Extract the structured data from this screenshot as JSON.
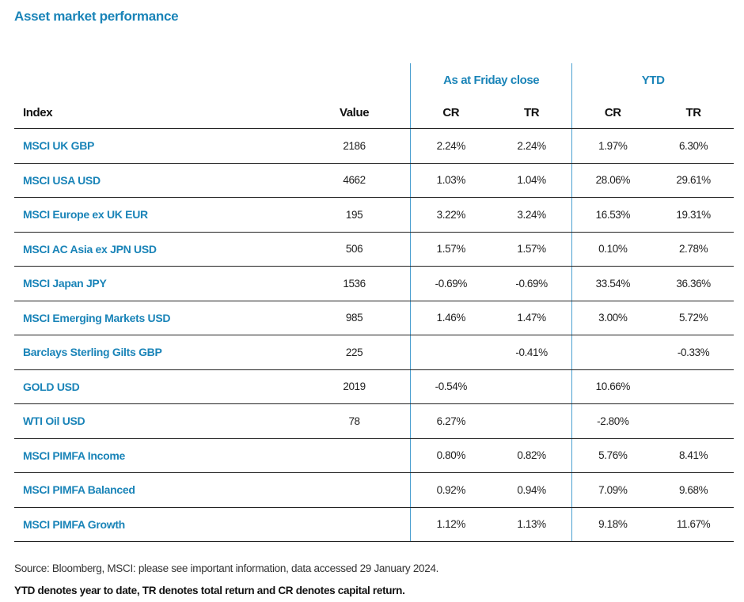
{
  "title": "Asset market performance",
  "groups": {
    "friday": "As at Friday close",
    "ytd": "YTD"
  },
  "headers": {
    "index": "Index",
    "value": "Value",
    "friday_cr": "CR",
    "friday_tr": "TR",
    "ytd_cr": "CR",
    "ytd_tr": "TR"
  },
  "rows": [
    {
      "index": "MSCI UK GBP",
      "value": "2186",
      "fcr": "2.24%",
      "ftr": "2.24%",
      "ycr": "1.97%",
      "ytr": "6.30%"
    },
    {
      "index": "MSCI USA USD",
      "value": "4662",
      "fcr": "1.03%",
      "ftr": "1.04%",
      "ycr": "28.06%",
      "ytr": "29.61%"
    },
    {
      "index": "MSCI Europe ex UK EUR",
      "value": "195",
      "fcr": "3.22%",
      "ftr": "3.24%",
      "ycr": "16.53%",
      "ytr": "19.31%"
    },
    {
      "index": "MSCI AC Asia ex JPN USD",
      "value": "506",
      "fcr": "1.57%",
      "ftr": "1.57%",
      "ycr": "0.10%",
      "ytr": "2.78%"
    },
    {
      "index": "MSCI Japan JPY",
      "value": "1536",
      "fcr": "-0.69%",
      "ftr": "-0.69%",
      "ycr": "33.54%",
      "ytr": "36.36%"
    },
    {
      "index": "MSCI Emerging Markets USD",
      "value": "985",
      "fcr": "1.46%",
      "ftr": "1.47%",
      "ycr": "3.00%",
      "ytr": "5.72%"
    },
    {
      "index": "Barclays Sterling Gilts GBP",
      "value": "225",
      "fcr": "",
      "ftr": "-0.41%",
      "ycr": "",
      "ytr": "-0.33%"
    },
    {
      "index": "GOLD USD",
      "value": "2019",
      "fcr": "-0.54%",
      "ftr": "",
      "ycr": "10.66%",
      "ytr": ""
    },
    {
      "index": "WTI Oil USD",
      "value": "78",
      "fcr": "6.27%",
      "ftr": "",
      "ycr": "-2.80%",
      "ytr": ""
    },
    {
      "index": "MSCI PIMFA Income",
      "value": "",
      "fcr": "0.80%",
      "ftr": "0.82%",
      "ycr": "5.76%",
      "ytr": "8.41%"
    },
    {
      "index": "MSCI PIMFA Balanced",
      "value": "",
      "fcr": "0.92%",
      "ftr": "0.94%",
      "ycr": "7.09%",
      "ytr": "9.68%"
    },
    {
      "index": "MSCI PIMFA Growth",
      "value": "",
      "fcr": "1.12%",
      "ftr": "1.13%",
      "ycr": "9.18%",
      "ytr": "11.67%"
    }
  ],
  "footer": {
    "source": "Source: Bloomberg, MSCI: please see important information, data accessed 29 January 2024.",
    "note": "YTD denotes year to date, TR denotes total return and CR denotes capital return."
  },
  "colors": {
    "accent": "#1a84b8",
    "divider": "#4a9fd0"
  }
}
